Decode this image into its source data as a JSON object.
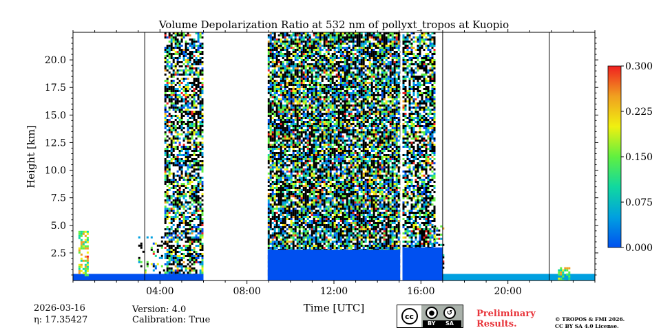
{
  "chart_data": {
    "type": "heatmap",
    "title": "Volume Depolarization Ratio at 532 nm of pollyxt_tropos at Kuopio",
    "xlabel": "Time [UTC]",
    "ylabel": "Height [km]",
    "xlim": [
      0,
      24
    ],
    "ylim": [
      0,
      22.5
    ],
    "x_ticks": [
      4,
      8,
      12,
      16,
      20
    ],
    "x_tick_labels": [
      "04:00",
      "08:00",
      "12:00",
      "16:00",
      "20:00"
    ],
    "y_ticks": [
      2.5,
      5.0,
      7.5,
      10.0,
      12.5,
      15.0,
      17.5,
      20.0
    ],
    "y_tick_labels": [
      "2.5",
      "5.0",
      "7.5",
      "10.0",
      "12.5",
      "15.0",
      "17.5",
      "20.0"
    ],
    "colorbar": {
      "min": 0.0,
      "max": 0.3,
      "ticks": [
        0.0,
        0.075,
        0.15,
        0.225,
        0.3
      ],
      "tick_labels": [
        "0.000",
        "0.075",
        "0.150",
        "0.225",
        "0.300"
      ],
      "colors": [
        "#0050f0",
        "#00a0e0",
        "#10d8a0",
        "#60f040",
        "#f0f010",
        "#f0a020",
        "#f02020"
      ]
    },
    "data_gaps_utc": [
      [
        6.0,
        8.95
      ],
      [
        15.05,
        15.15
      ]
    ],
    "profile_markers_utc": [
      3.3,
      17.0,
      21.9
    ],
    "noise_segments": [
      {
        "start": 4.2,
        "end": 6.0,
        "top_km": 22.5,
        "density": 0.7
      },
      {
        "start": 8.95,
        "end": 15.05,
        "top_km": 22.5,
        "density": 0.85
      },
      {
        "start": 15.15,
        "end": 16.6,
        "top_km": 22.5,
        "density": 0.7
      },
      {
        "start": 16.6,
        "end": 17.0,
        "top_km": 5.0,
        "density": 0.35
      },
      {
        "start": 3.0,
        "end": 4.2,
        "top_km": 4.0,
        "density": 0.2
      }
    ],
    "near_ground_layers": [
      {
        "start": 0.0,
        "end": 6.0,
        "top_km": 0.6,
        "value": 0.02
      },
      {
        "start": 8.95,
        "end": 15.05,
        "top_km": 2.8,
        "value": 0.01
      },
      {
        "start": 15.15,
        "end": 17.0,
        "top_km": 3.0,
        "value": 0.01
      },
      {
        "start": 17.0,
        "end": 24.0,
        "top_km": 0.6,
        "value": 0.04
      }
    ],
    "high_depol_patches": [
      {
        "start": 0.25,
        "end": 0.7,
        "bottom_km": 0.5,
        "top_km": 4.5,
        "value": 0.22
      },
      {
        "start": 22.3,
        "end": 22.8,
        "bottom_km": 0.0,
        "top_km": 1.2,
        "value": 0.2
      }
    ]
  },
  "footer": {
    "date": "2026-03-16",
    "eta_label": "η: 17.35427",
    "version": "Version: 4.0",
    "calibration": "Calibration: True",
    "preliminary_line1": "Preliminary",
    "preliminary_line2": "Results.",
    "copyright_line1": "© TROPOS & FMI 2026.",
    "copyright_line2": "CC BY SA 4.0 License.",
    "cc_label": "cc",
    "by_label": "BY",
    "sa_label": "SA"
  },
  "colors": {
    "preliminary": "#e8343a",
    "badge_bg": "#aab2ab"
  }
}
